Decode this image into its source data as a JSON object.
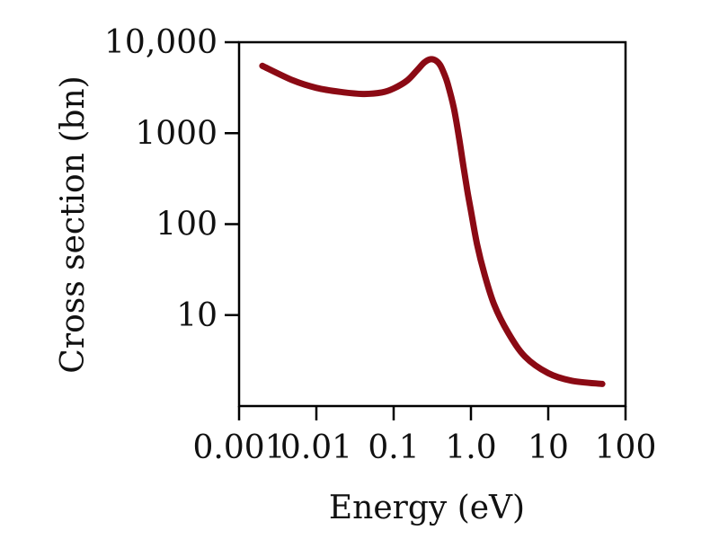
{
  "chart_data": {
    "type": "line",
    "title": "",
    "xlabel": "Energy (eV)",
    "ylabel": "Cross section (bn)",
    "xscale": "log",
    "yscale": "log",
    "xlim": [
      0.001,
      100
    ],
    "ylim": [
      1,
      10000
    ],
    "x_ticks": [
      {
        "value": 0.001,
        "label": "0.001"
      },
      {
        "value": 0.01,
        "label": "0.01"
      },
      {
        "value": 0.1,
        "label": "0.1"
      },
      {
        "value": 1,
        "label": "1.0"
      },
      {
        "value": 10,
        "label": "10"
      },
      {
        "value": 100,
        "label": "100"
      }
    ],
    "y_ticks": [
      {
        "value": 10,
        "label": "10"
      },
      {
        "value": 100,
        "label": "100"
      },
      {
        "value": 1000,
        "label": "1000"
      },
      {
        "value": 10000,
        "label": "10,000"
      }
    ],
    "grid": false,
    "series": [
      {
        "color": "#8b0a14",
        "x": [
          0.002,
          0.005,
          0.01,
          0.02,
          0.04,
          0.07,
          0.1,
          0.15,
          0.2,
          0.25,
          0.3,
          0.35,
          0.4,
          0.45,
          0.5,
          0.6,
          0.7,
          0.8,
          0.9,
          1.0,
          1.2,
          1.5,
          2,
          3,
          5,
          10,
          20,
          50
        ],
        "y": [
          5500,
          3800,
          3150,
          2850,
          2700,
          2800,
          3100,
          3800,
          4900,
          6000,
          6500,
          6300,
          5600,
          4500,
          3500,
          1900,
          900,
          430,
          230,
          140,
          60,
          28,
          13,
          6.5,
          3.5,
          2.3,
          1.9,
          1.75
        ]
      }
    ]
  }
}
